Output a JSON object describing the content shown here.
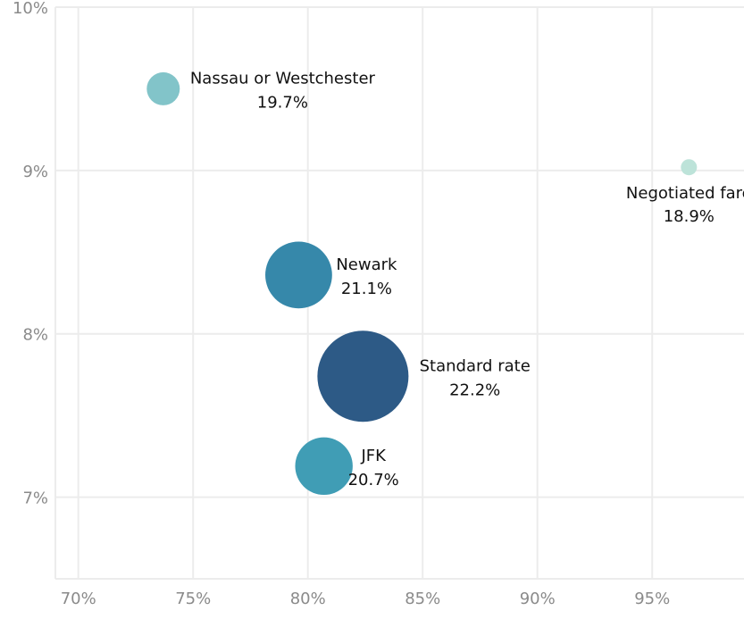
{
  "chart_data": {
    "type": "scatter",
    "encoding": "bubble",
    "title": "",
    "xlabel": "",
    "ylabel": "",
    "xlim": [
      0.69,
      0.99
    ],
    "ylim": [
      0.065,
      0.1
    ],
    "x_ticks": [
      {
        "value": 0.7,
        "label": "70%"
      },
      {
        "value": 0.75,
        "label": "75%"
      },
      {
        "value": 0.8,
        "label": "80%"
      },
      {
        "value": 0.85,
        "label": "85%"
      },
      {
        "value": 0.9,
        "label": "90%"
      },
      {
        "value": 0.95,
        "label": "95%"
      }
    ],
    "y_ticks": [
      {
        "value": 0.07,
        "label": "7%"
      },
      {
        "value": 0.08,
        "label": "8%"
      },
      {
        "value": 0.09,
        "label": "9%"
      },
      {
        "value": 0.1,
        "label": "10%"
      }
    ],
    "grid": true,
    "legend": "none",
    "points": [
      {
        "name": "Nassau or Westchester",
        "x": 0.737,
        "y": 0.095,
        "size": 19.7,
        "size_label": "19.7%",
        "color": "#82c4c9",
        "label_side": "right"
      },
      {
        "name": "Negotiated fare",
        "x": 0.966,
        "y": 0.0902,
        "size": 18.9,
        "size_label": "18.9%",
        "color": "#bde3d9",
        "label_side": "below"
      },
      {
        "name": "Newark",
        "x": 0.796,
        "y": 0.0836,
        "size": 21.1,
        "size_label": "21.1%",
        "color": "#3688aa",
        "label_side": "right"
      },
      {
        "name": "Standard rate",
        "x": 0.824,
        "y": 0.0774,
        "size": 22.2,
        "size_label": "22.2%",
        "color": "#2d5a86",
        "label_side": "right"
      },
      {
        "name": "JFK",
        "x": 0.807,
        "y": 0.0719,
        "size": 20.7,
        "size_label": "20.7%",
        "color": "#409db5",
        "label_side": "right"
      }
    ]
  },
  "colors": {
    "gridline": "#ececec",
    "tick_text": "#8a8a8a",
    "label_text": "#111111"
  }
}
